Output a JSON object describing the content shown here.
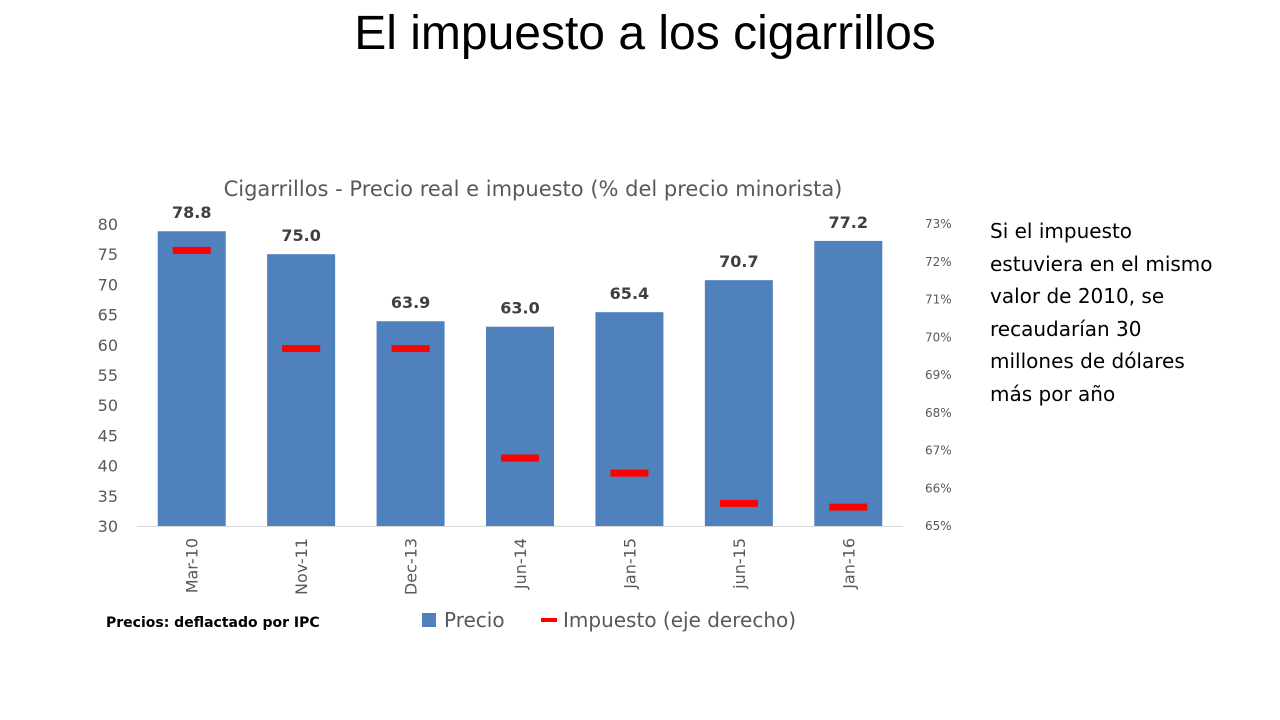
{
  "slide": {
    "title": "El impuesto a los cigarrillos",
    "note": "Si el impuesto estuviera en el mismo valor de 2010, se recaudarían 30 millones de dólares más por año",
    "footnote": "Precios:  deflactado por IPC"
  },
  "chart_data": {
    "type": "bar",
    "title": "Cigarrillos - Precio real e impuesto (% del precio minorista)",
    "categories": [
      "Mar-10",
      "Nov-11",
      "Dec-13",
      "Jun-14",
      "Jan-15",
      "jun-15",
      "Jan-16"
    ],
    "series": [
      {
        "name": "Precio",
        "kind": "bar",
        "axis": "left",
        "color": "#4F81BD",
        "values": [
          78.8,
          75.0,
          63.9,
          63.0,
          65.4,
          70.7,
          77.2
        ]
      },
      {
        "name": "Impuesto (eje derecho)",
        "kind": "marker",
        "axis": "right",
        "color": "#FF0000",
        "values": [
          72.3,
          69.7,
          69.7,
          66.8,
          66.4,
          65.6,
          65.5
        ]
      }
    ],
    "data_labels": [
      "78.8",
      "75.0",
      "63.9",
      "63.0",
      "65.4",
      "70.7",
      "77.2"
    ],
    "y_left": {
      "min": 30,
      "max": 80,
      "ticks": [
        "30",
        "35",
        "40",
        "45",
        "50",
        "55",
        "60",
        "65",
        "70",
        "75",
        "80"
      ]
    },
    "y_right": {
      "min": 65,
      "max": 73,
      "ticks": [
        "65%",
        "66%",
        "67%",
        "68%",
        "69%",
        "70%",
        "71%",
        "72%",
        "73%"
      ]
    },
    "legend": {
      "placement": "bottom",
      "entries": [
        "Precio",
        "Impuesto (eje derecho)"
      ]
    },
    "grid": false
  }
}
